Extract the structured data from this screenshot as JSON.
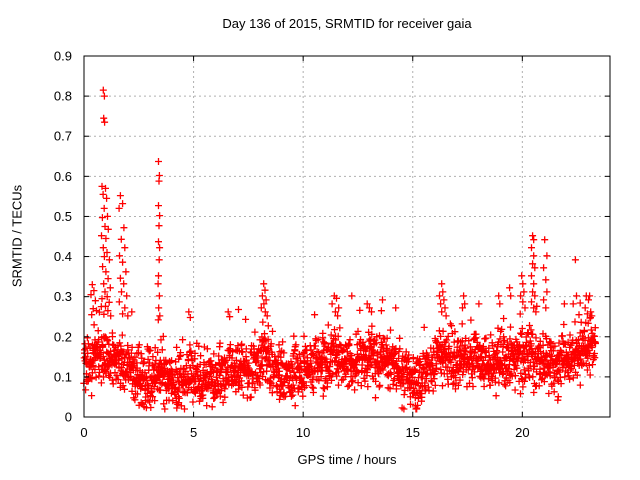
{
  "figure": {
    "background": "#ffffff",
    "text_color": "#000000"
  },
  "chart_data": {
    "type": "scatter",
    "title": "Day 136 of 2015, SRMTID for receiver gaia",
    "xlabel": "GPS time / hours",
    "ylabel": "SRMTID / TECUs",
    "xlim": [
      0,
      24
    ],
    "ylim": [
      0,
      0.9
    ],
    "xticks": [
      0,
      5,
      10,
      15,
      20
    ],
    "xtick_labels": [
      "0",
      "5",
      "10",
      "15",
      "20"
    ],
    "yticks": [
      0,
      0.1,
      0.2,
      0.3,
      0.4,
      0.5,
      0.6,
      0.7,
      0.8,
      0.9
    ],
    "ytick_labels": [
      "0",
      "0.1",
      "0.2",
      "0.3",
      "0.4",
      "0.5",
      "0.6",
      "0.7",
      "0.8",
      "0.9"
    ],
    "legend": "none",
    "grid": {
      "show": true,
      "color": "#b0b0b0",
      "dash": "2 3",
      "x_at": [
        5,
        10,
        15,
        20
      ],
      "y_at": [
        0.1,
        0.2,
        0.3,
        0.4,
        0.5,
        0.6,
        0.7,
        0.8
      ]
    },
    "axis": {
      "color": "#000000",
      "tick_len": 5
    },
    "marker": {
      "shape": "plus",
      "color": "#ff0000",
      "size": 7,
      "stroke_width": 1.3
    },
    "series": [
      {
        "name": "SRMTID",
        "outlier_points": [
          [
            0.32,
            0.305
          ],
          [
            0.38,
            0.33
          ],
          [
            0.45,
            0.315
          ],
          [
            0.52,
            0.29
          ],
          [
            0.42,
            0.27
          ],
          [
            0.57,
            0.265
          ],
          [
            0.35,
            0.255
          ],
          [
            0.88,
            0.815
          ],
          [
            0.93,
            0.8
          ],
          [
            0.9,
            0.745
          ],
          [
            0.94,
            0.735
          ],
          [
            0.82,
            0.575
          ],
          [
            0.98,
            0.57
          ],
          [
            0.87,
            0.555
          ],
          [
            1.03,
            0.545
          ],
          [
            0.92,
            0.52
          ],
          [
            1.07,
            0.5
          ],
          [
            0.84,
            0.497
          ],
          [
            0.96,
            0.475
          ],
          [
            1.11,
            0.468
          ],
          [
            0.8,
            0.452
          ],
          [
            1.0,
            0.445
          ],
          [
            0.88,
            0.422
          ],
          [
            1.05,
            0.41
          ],
          [
            0.93,
            0.4
          ],
          [
            1.16,
            0.392
          ],
          [
            0.85,
            0.375
          ],
          [
            1.0,
            0.362
          ],
          [
            1.1,
            0.345
          ],
          [
            0.9,
            0.332
          ],
          [
            1.2,
            0.322
          ],
          [
            0.96,
            0.312
          ],
          [
            1.06,
            0.3
          ],
          [
            0.82,
            0.295
          ],
          [
            1.15,
            0.286
          ],
          [
            0.98,
            0.276
          ],
          [
            1.09,
            0.265
          ],
          [
            0.91,
            0.256
          ],
          [
            1.22,
            0.252
          ],
          [
            1.66,
            0.552
          ],
          [
            1.76,
            0.532
          ],
          [
            1.6,
            0.52
          ],
          [
            1.82,
            0.472
          ],
          [
            1.7,
            0.443
          ],
          [
            1.86,
            0.422
          ],
          [
            1.62,
            0.402
          ],
          [
            1.76,
            0.386
          ],
          [
            1.91,
            0.362
          ],
          [
            1.66,
            0.346
          ],
          [
            1.81,
            0.332
          ],
          [
            1.71,
            0.312
          ],
          [
            1.95,
            0.302
          ],
          [
            1.61,
            0.287
          ],
          [
            1.86,
            0.272
          ],
          [
            1.76,
            0.257
          ],
          [
            2.0,
            0.252
          ],
          [
            2.18,
            0.262
          ],
          [
            3.4,
            0.637
          ],
          [
            3.44,
            0.602
          ],
          [
            3.42,
            0.588
          ],
          [
            3.4,
            0.527
          ],
          [
            3.45,
            0.502
          ],
          [
            3.42,
            0.477
          ],
          [
            3.4,
            0.437
          ],
          [
            3.45,
            0.422
          ],
          [
            3.43,
            0.392
          ],
          [
            3.4,
            0.352
          ],
          [
            3.38,
            0.332
          ],
          [
            3.44,
            0.302
          ],
          [
            3.41,
            0.272
          ],
          [
            3.46,
            0.252
          ],
          [
            3.39,
            0.242
          ],
          [
            4.78,
            0.262
          ],
          [
            4.85,
            0.248
          ],
          [
            6.58,
            0.262
          ],
          [
            6.65,
            0.25
          ],
          [
            7.05,
            0.268
          ],
          [
            8.2,
            0.332
          ],
          [
            8.26,
            0.316
          ],
          [
            8.14,
            0.302
          ],
          [
            8.31,
            0.292
          ],
          [
            8.21,
            0.282
          ],
          [
            8.09,
            0.272
          ],
          [
            8.27,
            0.262
          ],
          [
            8.36,
            0.252
          ],
          [
            10.52,
            0.255
          ],
          [
            11.42,
            0.302
          ],
          [
            11.52,
            0.296
          ],
          [
            11.32,
            0.282
          ],
          [
            11.62,
            0.272
          ],
          [
            11.47,
            0.262
          ],
          [
            11.57,
            0.252
          ],
          [
            12.22,
            0.302
          ],
          [
            12.92,
            0.282
          ],
          [
            13.02,
            0.272
          ],
          [
            13.12,
            0.262
          ],
          [
            13.62,
            0.292
          ],
          [
            13.57,
            0.265
          ],
          [
            14.22,
            0.272
          ],
          [
            16.32,
            0.332
          ],
          [
            16.37,
            0.312
          ],
          [
            16.22,
            0.302
          ],
          [
            16.42,
            0.292
          ],
          [
            16.27,
            0.282
          ],
          [
            16.47,
            0.272
          ],
          [
            16.32,
            0.262
          ],
          [
            16.52,
            0.252
          ],
          [
            17.32,
            0.302
          ],
          [
            17.37,
            0.282
          ],
          [
            17.27,
            0.272
          ],
          [
            18.02,
            0.282
          ],
          [
            18.92,
            0.302
          ],
          [
            18.97,
            0.282
          ],
          [
            19.42,
            0.322
          ],
          [
            19.47,
            0.302
          ],
          [
            19.97,
            0.352
          ],
          [
            20.02,
            0.332
          ],
          [
            20.07,
            0.312
          ],
          [
            19.92,
            0.302
          ],
          [
            20.02,
            0.287
          ],
          [
            20.12,
            0.272
          ],
          [
            20.47,
            0.452
          ],
          [
            20.52,
            0.442
          ],
          [
            20.42,
            0.422
          ],
          [
            20.52,
            0.402
          ],
          [
            20.47,
            0.382
          ],
          [
            20.57,
            0.372
          ],
          [
            20.42,
            0.352
          ],
          [
            20.52,
            0.332
          ],
          [
            20.47,
            0.312
          ],
          [
            20.57,
            0.302
          ],
          [
            20.42,
            0.287
          ],
          [
            20.52,
            0.272
          ],
          [
            20.62,
            0.262
          ],
          [
            21.02,
            0.442
          ],
          [
            21.12,
            0.402
          ],
          [
            20.97,
            0.372
          ],
          [
            21.07,
            0.342
          ],
          [
            21.12,
            0.312
          ],
          [
            20.97,
            0.292
          ],
          [
            21.07,
            0.272
          ],
          [
            21.92,
            0.282
          ],
          [
            22.42,
            0.392
          ],
          [
            22.47,
            0.302
          ],
          [
            22.32,
            0.282
          ],
          [
            22.92,
            0.302
          ],
          [
            23.02,
            0.292
          ],
          [
            22.87,
            0.272
          ],
          [
            23.12,
            0.262
          ],
          [
            22.97,
            0.257
          ],
          [
            23.07,
            0.302
          ],
          [
            23.17,
            0.252
          ]
        ],
        "low_points": [
          [
            2.68,
            0.032
          ],
          [
            2.74,
            0.026
          ],
          [
            2.92,
            0.042
          ],
          [
            3.88,
            0.042
          ],
          [
            4.32,
            0.036
          ],
          [
            5.92,
            0.046
          ],
          [
            8.92,
            0.044
          ],
          [
            9.12,
            0.05
          ],
          [
            10.92,
            0.052
          ],
          [
            13.3,
            0.048
          ],
          [
            15.12,
            0.028
          ],
          [
            15.18,
            0.022
          ],
          [
            15.26,
            0.046
          ],
          [
            21.62,
            0.042
          ]
        ],
        "base": {
          "seed": 20150516,
          "count": 2150,
          "x_start": 0.0,
          "x_end": 23.35,
          "x_jitter": 0.012,
          "spread": 0.065,
          "up_tail_prob": 0.08,
          "up_tail_scale": 0.07,
          "down_tail_prob": 0.04,
          "down_tail_scale": 0.05,
          "clip_min": 0.02,
          "clip_max": 0.355,
          "mean_profile": [
            [
              0,
              0.125
            ],
            [
              0.4,
              0.135
            ],
            [
              0.9,
              0.155
            ],
            [
              1.4,
              0.145
            ],
            [
              1.9,
              0.125
            ],
            [
              2.4,
              0.095
            ],
            [
              2.8,
              0.08
            ],
            [
              3.2,
              0.095
            ],
            [
              3.5,
              0.115
            ],
            [
              3.8,
              0.085
            ],
            [
              4.3,
              0.08
            ],
            [
              4.8,
              0.115
            ],
            [
              5.2,
              0.1
            ],
            [
              5.7,
              0.105
            ],
            [
              6.2,
              0.11
            ],
            [
              6.7,
              0.125
            ],
            [
              7.2,
              0.12
            ],
            [
              7.7,
              0.125
            ],
            [
              8.2,
              0.145
            ],
            [
              8.7,
              0.115
            ],
            [
              9.2,
              0.1
            ],
            [
              9.7,
              0.115
            ],
            [
              10.2,
              0.125
            ],
            [
              10.7,
              0.13
            ],
            [
              11.2,
              0.145
            ],
            [
              11.6,
              0.155
            ],
            [
              12.1,
              0.13
            ],
            [
              12.6,
              0.14
            ],
            [
              13.1,
              0.15
            ],
            [
              13.6,
              0.145
            ],
            [
              14.1,
              0.135
            ],
            [
              14.6,
              0.12
            ],
            [
              15.1,
              0.085
            ],
            [
              15.6,
              0.115
            ],
            [
              16.1,
              0.15
            ],
            [
              16.5,
              0.16
            ],
            [
              17.0,
              0.14
            ],
            [
              17.5,
              0.15
            ],
            [
              18.0,
              0.14
            ],
            [
              18.5,
              0.135
            ],
            [
              19.0,
              0.14
            ],
            [
              19.5,
              0.14
            ],
            [
              20.0,
              0.15
            ],
            [
              20.5,
              0.15
            ],
            [
              21.0,
              0.135
            ],
            [
              21.5,
              0.12
            ],
            [
              22.0,
              0.14
            ],
            [
              22.5,
              0.16
            ],
            [
              22.9,
              0.175
            ],
            [
              23.35,
              0.165
            ]
          ]
        }
      }
    ]
  }
}
